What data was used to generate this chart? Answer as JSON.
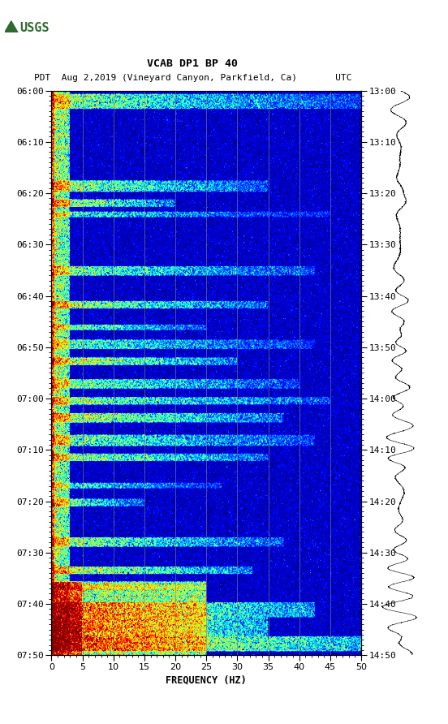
{
  "title_line1": "VCAB DP1 BP 40",
  "title_line2": "PDT  Aug 2,2019 (Vineyard Canyon, Parkfield, Ca)       UTC",
  "left_yticks": [
    "06:00",
    "06:10",
    "06:20",
    "06:30",
    "06:40",
    "06:50",
    "07:00",
    "07:10",
    "07:20",
    "07:30",
    "07:40",
    "07:50"
  ],
  "right_yticks": [
    "13:00",
    "13:10",
    "13:20",
    "13:30",
    "13:40",
    "13:50",
    "14:00",
    "14:10",
    "14:20",
    "14:30",
    "14:40",
    "14:50"
  ],
  "xticks": [
    0,
    5,
    10,
    15,
    20,
    25,
    30,
    35,
    40,
    45,
    50
  ],
  "xlabel": "FREQUENCY (HZ)",
  "freq_min": 0,
  "freq_max": 50,
  "background_color": "#ffffff",
  "spectrogram_cmap": "jet",
  "vgrid_color": "#888866",
  "usgs_color": "#2d6a2d"
}
